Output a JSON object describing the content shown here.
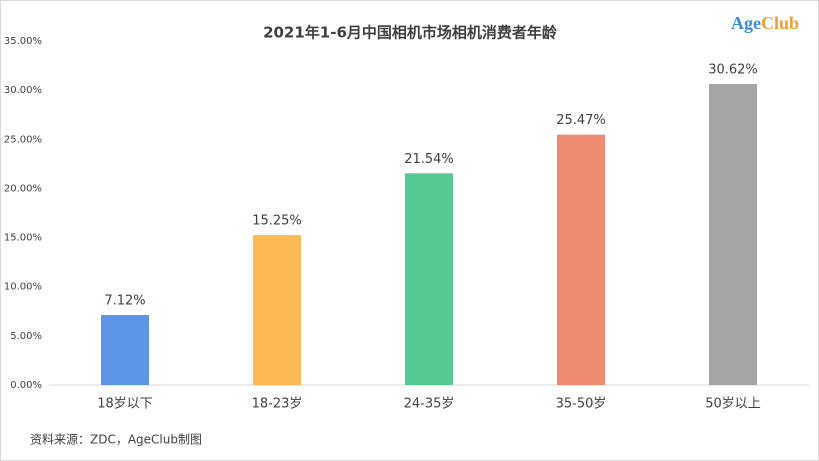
{
  "chart_data": {
    "type": "bar",
    "title": "2021年1-6月中国相机市场相机消费者年龄",
    "categories": [
      "18岁以下",
      "18-23岁",
      "24-35岁",
      "35-50岁",
      "50岁以上"
    ],
    "values": [
      7.12,
      15.25,
      21.54,
      25.47,
      30.62
    ],
    "value_labels": [
      "7.12%",
      "15.25%",
      "21.54%",
      "25.47%",
      "30.62%"
    ],
    "colors": [
      "#5b96e6",
      "#fdb954",
      "#55c98f",
      "#ef8a72",
      "#a5a5a5"
    ],
    "ylim": [
      0,
      35
    ],
    "yticks": [
      {
        "value": 0,
        "label": "0.00%"
      },
      {
        "value": 5,
        "label": "5.00%"
      },
      {
        "value": 10,
        "label": "10.00%"
      },
      {
        "value": 15,
        "label": "15.00%"
      },
      {
        "value": 20,
        "label": "20.00%"
      },
      {
        "value": 25,
        "label": "25.00%"
      },
      {
        "value": 30,
        "label": "30.00%"
      },
      {
        "value": 35,
        "label": "35.00%"
      }
    ],
    "grid": false,
    "logo": [
      "Age",
      "Club"
    ],
    "source": "资料来源：ZDC，AgeClub制图"
  }
}
